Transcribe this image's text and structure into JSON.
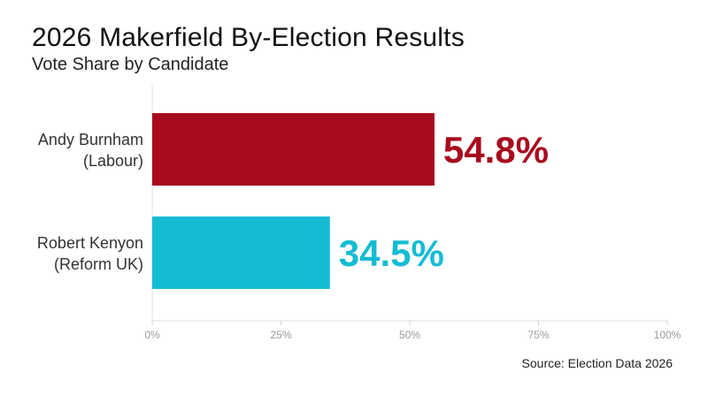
{
  "header": {
    "title": "2026 Makerfield By-Election Results",
    "subtitle": "Vote Share by Candidate"
  },
  "footer": {
    "source": "Source: Election Data 2026"
  },
  "chart_data": {
    "type": "bar",
    "orientation": "horizontal",
    "title": "2026 Makerfield By-Election Results",
    "subtitle": "Vote Share by Candidate",
    "categories": [
      [
        "Andy Burnham",
        "(Labour)"
      ],
      [
        "Robert Kenyon",
        "(Reform UK)"
      ]
    ],
    "values": [
      54.8,
      34.5
    ],
    "value_labels": [
      "54.8%",
      "34.5%"
    ],
    "colors": [
      "#a80a1e",
      "#13bcd3"
    ],
    "xlim": [
      0,
      100
    ],
    "x_ticks": [
      0,
      25,
      50,
      75,
      100
    ],
    "x_tick_labels": [
      "0%",
      "25%",
      "50%",
      "75%",
      "100%"
    ],
    "grid": false,
    "legend": "none"
  }
}
